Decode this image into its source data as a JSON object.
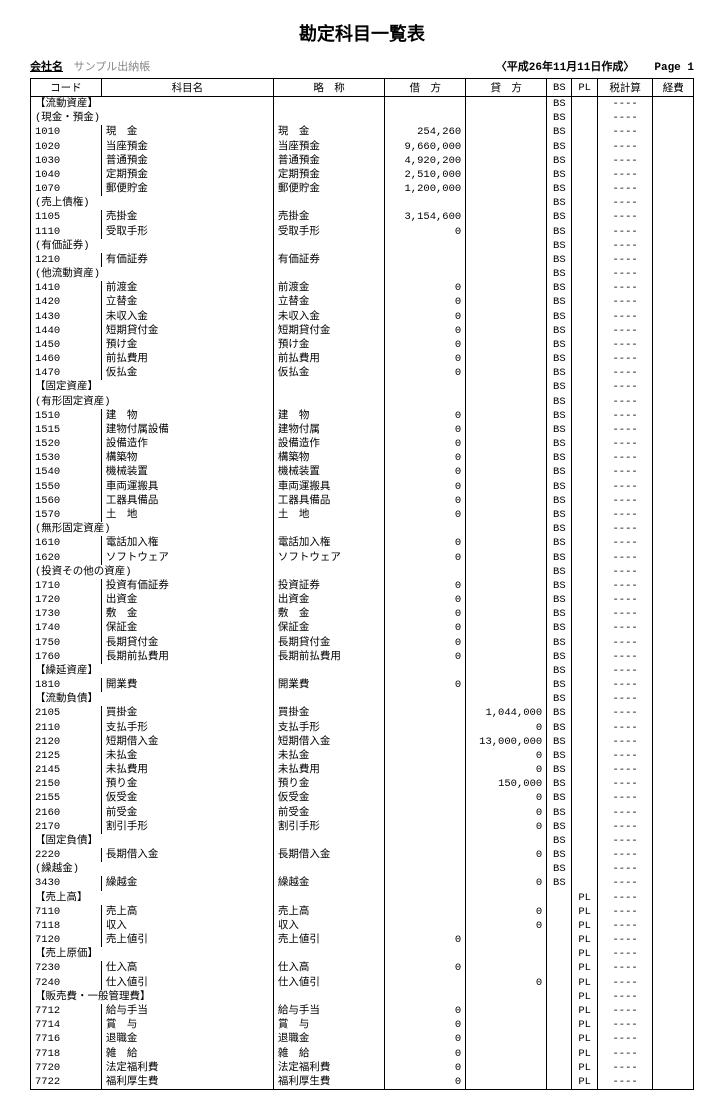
{
  "title": "勘定科目一覧表",
  "company_label": "会社名",
  "company_name": "サンプル出納帳",
  "created_label": "〈平成26年11月11日作成〉",
  "page_label": "Page",
  "page_number": "1",
  "columns": {
    "code": "コード",
    "name": "科目名",
    "abbr": "略　称",
    "debit": "借　方",
    "credit": "貸　方",
    "bs": "BS",
    "pl": "PL",
    "tax": "税計算",
    "exp": "経費"
  },
  "rows": [
    {
      "type": "section",
      "code": "【流動資産】",
      "bs": "BS",
      "tax": "----"
    },
    {
      "type": "group",
      "code": "(現金・預金)",
      "bs": "BS",
      "tax": "----"
    },
    {
      "type": "item",
      "code": "1010",
      "name": "現　金",
      "abbr": "現　金",
      "debit": "254,260",
      "bs": "BS",
      "tax": "----"
    },
    {
      "type": "item",
      "code": "1020",
      "name": "当座預金",
      "abbr": "当座預金",
      "debit": "9,660,000",
      "bs": "BS",
      "tax": "----"
    },
    {
      "type": "item",
      "code": "1030",
      "name": "普通預金",
      "abbr": "普通預金",
      "debit": "4,920,200",
      "bs": "BS",
      "tax": "----"
    },
    {
      "type": "item",
      "code": "1040",
      "name": "定期預金",
      "abbr": "定期預金",
      "debit": "2,510,000",
      "bs": "BS",
      "tax": "----"
    },
    {
      "type": "item",
      "code": "1070",
      "name": "郵便貯金",
      "abbr": "郵便貯金",
      "debit": "1,200,000",
      "bs": "BS",
      "tax": "----"
    },
    {
      "type": "group",
      "code": "(売上債権)",
      "bs": "BS",
      "tax": "----"
    },
    {
      "type": "item",
      "code": "1105",
      "name": "売掛金",
      "abbr": "売掛金",
      "debit": "3,154,600",
      "bs": "BS",
      "tax": "----"
    },
    {
      "type": "item",
      "code": "1110",
      "name": "受取手形",
      "abbr": "受取手形",
      "debit": "0",
      "bs": "BS",
      "tax": "----"
    },
    {
      "type": "group",
      "code": "(有価証券)",
      "bs": "BS",
      "tax": "----"
    },
    {
      "type": "item",
      "code": "1210",
      "name": "有価証券",
      "abbr": "有価証券",
      "bs": "BS",
      "tax": "----"
    },
    {
      "type": "group",
      "code": "(他流動資産)",
      "bs": "BS",
      "tax": "----"
    },
    {
      "type": "item",
      "code": "1410",
      "name": "前渡金",
      "abbr": "前渡金",
      "debit": "0",
      "bs": "BS",
      "tax": "----"
    },
    {
      "type": "item",
      "code": "1420",
      "name": "立替金",
      "abbr": "立替金",
      "debit": "0",
      "bs": "BS",
      "tax": "----"
    },
    {
      "type": "item",
      "code": "1430",
      "name": "未収入金",
      "abbr": "未収入金",
      "debit": "0",
      "bs": "BS",
      "tax": "----"
    },
    {
      "type": "item",
      "code": "1440",
      "name": "短期貸付金",
      "abbr": "短期貸付金",
      "debit": "0",
      "bs": "BS",
      "tax": "----"
    },
    {
      "type": "item",
      "code": "1450",
      "name": "預け金",
      "abbr": "預け金",
      "debit": "0",
      "bs": "BS",
      "tax": "----"
    },
    {
      "type": "item",
      "code": "1460",
      "name": "前払費用",
      "abbr": "前払費用",
      "debit": "0",
      "bs": "BS",
      "tax": "----"
    },
    {
      "type": "item",
      "code": "1470",
      "name": "仮払金",
      "abbr": "仮払金",
      "debit": "0",
      "bs": "BS",
      "tax": "----"
    },
    {
      "type": "section",
      "code": "【固定資産】",
      "bs": "BS",
      "tax": "----"
    },
    {
      "type": "group",
      "code": "(有形固定資産)",
      "bs": "BS",
      "tax": "----"
    },
    {
      "type": "item",
      "code": "1510",
      "name": "建　物",
      "abbr": "建　物",
      "debit": "0",
      "bs": "BS",
      "tax": "----"
    },
    {
      "type": "item",
      "code": "1515",
      "name": "建物付属設備",
      "abbr": "建物付属",
      "debit": "0",
      "bs": "BS",
      "tax": "----"
    },
    {
      "type": "item",
      "code": "1520",
      "name": "設備造作",
      "abbr": "設備造作",
      "debit": "0",
      "bs": "BS",
      "tax": "----"
    },
    {
      "type": "item",
      "code": "1530",
      "name": "構築物",
      "abbr": "構築物",
      "debit": "0",
      "bs": "BS",
      "tax": "----"
    },
    {
      "type": "item",
      "code": "1540",
      "name": "機械装置",
      "abbr": "機械装置",
      "debit": "0",
      "bs": "BS",
      "tax": "----"
    },
    {
      "type": "item",
      "code": "1550",
      "name": "車両運搬具",
      "abbr": "車両運搬具",
      "debit": "0",
      "bs": "BS",
      "tax": "----"
    },
    {
      "type": "item",
      "code": "1560",
      "name": "工器具備品",
      "abbr": "工器具備品",
      "debit": "0",
      "bs": "BS",
      "tax": "----"
    },
    {
      "type": "item",
      "code": "1570",
      "name": "土　地",
      "abbr": "土　地",
      "debit": "0",
      "bs": "BS",
      "tax": "----"
    },
    {
      "type": "group",
      "code": "(無形固定資産)",
      "bs": "BS",
      "tax": "----"
    },
    {
      "type": "item",
      "code": "1610",
      "name": "電話加入権",
      "abbr": "電話加入権",
      "debit": "0",
      "bs": "BS",
      "tax": "----"
    },
    {
      "type": "item",
      "code": "1620",
      "name": "ソフトウェア",
      "abbr": "ソフトウェア",
      "debit": "0",
      "bs": "BS",
      "tax": "----"
    },
    {
      "type": "group",
      "code": "(投資その他の資産)",
      "bs": "BS",
      "tax": "----"
    },
    {
      "type": "item",
      "code": "1710",
      "name": "投資有価証券",
      "abbr": "投資証券",
      "debit": "0",
      "bs": "BS",
      "tax": "----"
    },
    {
      "type": "item",
      "code": "1720",
      "name": "出資金",
      "abbr": "出資金",
      "debit": "0",
      "bs": "BS",
      "tax": "----"
    },
    {
      "type": "item",
      "code": "1730",
      "name": "敷　金",
      "abbr": "敷　金",
      "debit": "0",
      "bs": "BS",
      "tax": "----"
    },
    {
      "type": "item",
      "code": "1740",
      "name": "保証金",
      "abbr": "保証金",
      "debit": "0",
      "bs": "BS",
      "tax": "----"
    },
    {
      "type": "item",
      "code": "1750",
      "name": "長期貸付金",
      "abbr": "長期貸付金",
      "debit": "0",
      "bs": "BS",
      "tax": "----"
    },
    {
      "type": "item",
      "code": "1760",
      "name": "長期前払費用",
      "abbr": "長期前払費用",
      "debit": "0",
      "bs": "BS",
      "tax": "----"
    },
    {
      "type": "section",
      "code": "【繰延資産】",
      "bs": "BS",
      "tax": "----"
    },
    {
      "type": "item",
      "code": "1810",
      "name": "開業費",
      "abbr": "開業費",
      "debit": "0",
      "bs": "BS",
      "tax": "----"
    },
    {
      "type": "section",
      "code": "【流動負債】",
      "bs": "BS",
      "tax": "----"
    },
    {
      "type": "item",
      "code": "2105",
      "name": "買掛金",
      "abbr": "買掛金",
      "credit": "1,044,000",
      "bs": "BS",
      "tax": "----"
    },
    {
      "type": "item",
      "code": "2110",
      "name": "支払手形",
      "abbr": "支払手形",
      "credit": "0",
      "bs": "BS",
      "tax": "----"
    },
    {
      "type": "item",
      "code": "2120",
      "name": "短期借入金",
      "abbr": "短期借入金",
      "credit": "13,000,000",
      "bs": "BS",
      "tax": "----"
    },
    {
      "type": "item",
      "code": "2125",
      "name": "未払金",
      "abbr": "未払金",
      "credit": "0",
      "bs": "BS",
      "tax": "----"
    },
    {
      "type": "item",
      "code": "2145",
      "name": "未払費用",
      "abbr": "未払費用",
      "credit": "0",
      "bs": "BS",
      "tax": "----"
    },
    {
      "type": "item",
      "code": "2150",
      "name": "預り金",
      "abbr": "預り金",
      "credit": "150,000",
      "bs": "BS",
      "tax": "----"
    },
    {
      "type": "item",
      "code": "2155",
      "name": "仮受金",
      "abbr": "仮受金",
      "credit": "0",
      "bs": "BS",
      "tax": "----"
    },
    {
      "type": "item",
      "code": "2160",
      "name": "前受金",
      "abbr": "前受金",
      "credit": "0",
      "bs": "BS",
      "tax": "----"
    },
    {
      "type": "item",
      "code": "2170",
      "name": "割引手形",
      "abbr": "割引手形",
      "credit": "0",
      "bs": "BS",
      "tax": "----"
    },
    {
      "type": "section",
      "code": "【固定負債】",
      "bs": "BS",
      "tax": "----"
    },
    {
      "type": "item",
      "code": "2220",
      "name": "長期借入金",
      "abbr": "長期借入金",
      "credit": "0",
      "bs": "BS",
      "tax": "----"
    },
    {
      "type": "group",
      "code": "(繰越金)",
      "bs": "BS",
      "tax": "----"
    },
    {
      "type": "item",
      "code": "3430",
      "name": "繰越金",
      "abbr": "繰越金",
      "credit": "0",
      "bs": "BS",
      "tax": "----"
    },
    {
      "type": "section",
      "code": "【売上高】",
      "pl": "PL",
      "tax": "----"
    },
    {
      "type": "item",
      "code": "7110",
      "name": "売上高",
      "abbr": "売上高",
      "credit": "0",
      "pl": "PL",
      "tax": "----"
    },
    {
      "type": "item",
      "code": "7118",
      "name": "収入",
      "abbr": "収入",
      "credit": "0",
      "pl": "PL",
      "tax": "----"
    },
    {
      "type": "item",
      "code": "7120",
      "name": "売上値引",
      "abbr": "売上値引",
      "debit": "0",
      "pl": "PL",
      "tax": "----"
    },
    {
      "type": "section",
      "code": "【売上原価】",
      "pl": "PL",
      "tax": "----"
    },
    {
      "type": "item",
      "code": "7230",
      "name": "仕入高",
      "abbr": "仕入高",
      "debit": "0",
      "pl": "PL",
      "tax": "----"
    },
    {
      "type": "item",
      "code": "7240",
      "name": "仕入値引",
      "abbr": "仕入値引",
      "credit": "0",
      "pl": "PL",
      "tax": "----"
    },
    {
      "type": "section",
      "code": "【販売費・一般管理費】",
      "pl": "PL",
      "tax": "----"
    },
    {
      "type": "item",
      "code": "7712",
      "name": "給与手当",
      "abbr": "給与手当",
      "debit": "0",
      "pl": "PL",
      "tax": "----"
    },
    {
      "type": "item",
      "code": "7714",
      "name": "賞　与",
      "abbr": "賞　与",
      "debit": "0",
      "pl": "PL",
      "tax": "----"
    },
    {
      "type": "item",
      "code": "7716",
      "name": "退職金",
      "abbr": "退職金",
      "debit": "0",
      "pl": "PL",
      "tax": "----"
    },
    {
      "type": "item",
      "code": "7718",
      "name": "雑　給",
      "abbr": "雑　給",
      "debit": "0",
      "pl": "PL",
      "tax": "----"
    },
    {
      "type": "item",
      "code": "7720",
      "name": "法定福利費",
      "abbr": "法定福利費",
      "debit": "0",
      "pl": "PL",
      "tax": "----"
    },
    {
      "type": "item",
      "code": "7722",
      "name": "福利厚生費",
      "abbr": "福利厚生費",
      "debit": "0",
      "pl": "PL",
      "tax": "----"
    }
  ]
}
